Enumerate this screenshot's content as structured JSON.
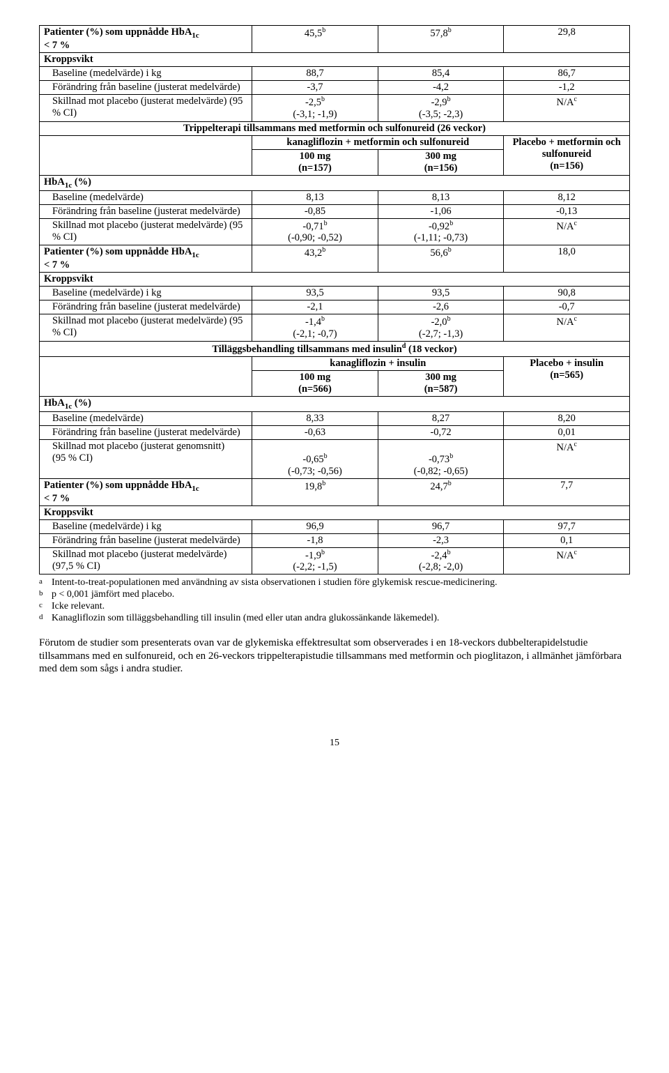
{
  "s1": {
    "row_pat_title_a": "Patienter (%) som uppnådde HbA",
    "row_pat_title_b": "< 7 %",
    "v1": "45,5",
    "v2": "57,8",
    "v3": "29,8",
    "kropp": "Kroppsvikt",
    "baseline_kg": "Baseline (medelvärde) i kg",
    "bkg1": "88,7",
    "bkg2": "85,4",
    "bkg3": "86,7",
    "chg": "Förändring från baseline (justerat medelvärde)",
    "chg1": "-3,7",
    "chg2": "-4,2",
    "chg3": "-1,2",
    "diff": "Skillnad mot placebo (justerat medelvärde) (95 % CI)",
    "d1a": "-2,5",
    "d1b": "(-3,1; -1,9)",
    "d2a": "-2,9",
    "d2b": "(-3,5; -2,3)",
    "d3": "N/A"
  },
  "s2": {
    "header_title": "Trippelterapi tillsammans med metformin och sulfonureid (26 veckor)",
    "drug_header": "kanagliflozin + metformin och sulfonureid",
    "col1a": "100 mg",
    "col1b": "(n=157)",
    "col2a": "300 mg",
    "col2b": "(n=156)",
    "col3a": "Placebo + metformin och sulfonureid",
    "col3b": "(n=156)",
    "hba": "HbA",
    "hba_pct": " (%)",
    "baseline": "Baseline (medelvärde)",
    "b1": "8,13",
    "b2": "8,13",
    "b3": "8,12",
    "chg": "Förändring från baseline (justerat medelvärde)",
    "c1": "-0,85",
    "c2": "-1,06",
    "c3": "-0,13",
    "diff": "Skillnad mot placebo (justerat medelvärde) (95 % CI)",
    "d1a": "-0,71",
    "d1b": "(-0,90; -0,52)",
    "d2a": "-0,92",
    "d2b": "(-1,11; -0,73)",
    "d3": "N/A",
    "pat_a": "Patienter (%) som uppnådde HbA",
    "pat_b": "< 7 %",
    "p1": "43,2",
    "p2": "56,6",
    "p3": "18,0",
    "kropp": "Kroppsvikt",
    "baseline_kg": "Baseline (medelvärde) i kg",
    "bkg1": "93,5",
    "bkg2": "93,5",
    "bkg3": "90,8",
    "chg2_lbl": "Förändring från baseline (justerat medelvärde)",
    "cc1": "-2,1",
    "cc2": "-2,6",
    "cc3": "-0,7",
    "diff2": "Skillnad mot placebo (justerat medelvärde) (95 % CI)",
    "dd1a": "-1,4",
    "dd1b": "(-2,1; -0,7)",
    "dd2a": "-2,0",
    "dd2b": "(-2,7; -1,3)",
    "dd3": "N/A"
  },
  "s3": {
    "header_title_a": "Tilläggsbehandling tillsammans med insulin",
    "header_title_b": " (18 veckor)",
    "drug_header": "kanagliflozin + insulin",
    "col1a": "100 mg",
    "col1b": "(n=566)",
    "col2a": "300 mg",
    "col2b": "(n=587)",
    "col3a": "Placebo + insulin",
    "col3b": "(n=565)",
    "hba": "HbA",
    "hba_pct": " (%)",
    "baseline": "Baseline (medelvärde)",
    "b1": "8,33",
    "b2": "8,27",
    "b3": "8,20",
    "chg": "Förändring från baseline (justerat medelvärde)",
    "c1": "-0,63",
    "c2": "-0,72",
    "c3": "0,01",
    "diff_lbl_a": "Skillnad mot placebo (justerat genomsnitt)",
    "diff_lbl_b": "(95 % CI)",
    "d1a": "-0,65",
    "d1b": "(-0,73; -0,56)",
    "d2a": "-0,73",
    "d2b": "(-0,82; -0,65)",
    "d3": "N/A",
    "pat_a": "Patienter (%) som uppnådde HbA",
    "pat_b": "< 7 %",
    "p1": "19,8",
    "p2": "24,7",
    "p3": "7,7",
    "kropp": "Kroppsvikt",
    "baseline_kg": "Baseline (medelvärde) i kg",
    "bkg1": "96,9",
    "bkg2": "96,7",
    "bkg3": "97,7",
    "chg2_lbl": "Förändring från baseline (justerat medelvärde)",
    "cc1": "-1,8",
    "cc2": "-2,3",
    "cc3": "0,1",
    "diff2": "Skillnad mot placebo (justerat medelvärde) (97,5 % CI)",
    "dd1a": "-1,9",
    "dd1b": "(-2,2; -1,5)",
    "dd2a": "-2,4",
    "dd2b": "(-2,8; -2,0)",
    "dd3": "N/A"
  },
  "notes": {
    "a": "Intent-to-treat-populationen med användning av sista observationen i studien före glykemisk rescue-medicinering.",
    "b": "p < 0,001 jämfört med placebo.",
    "c": "Icke relevant.",
    "d": "Kanagliflozin som tilläggsbehandling till insulin (med eller utan andra glukossänkande läkemedel)."
  },
  "paragraph": "Förutom de studier som presenterats ovan var de glykemiska effektresultat som observerades i en 18-veckors dubbelterapidelstudie tillsammans med en sulfonureid, och en 26-veckors trippelterapistudie tillsammans med metformin och pioglitazon, i allmänhet jämförbara med dem som sågs i andra studier.",
  "page": "15"
}
